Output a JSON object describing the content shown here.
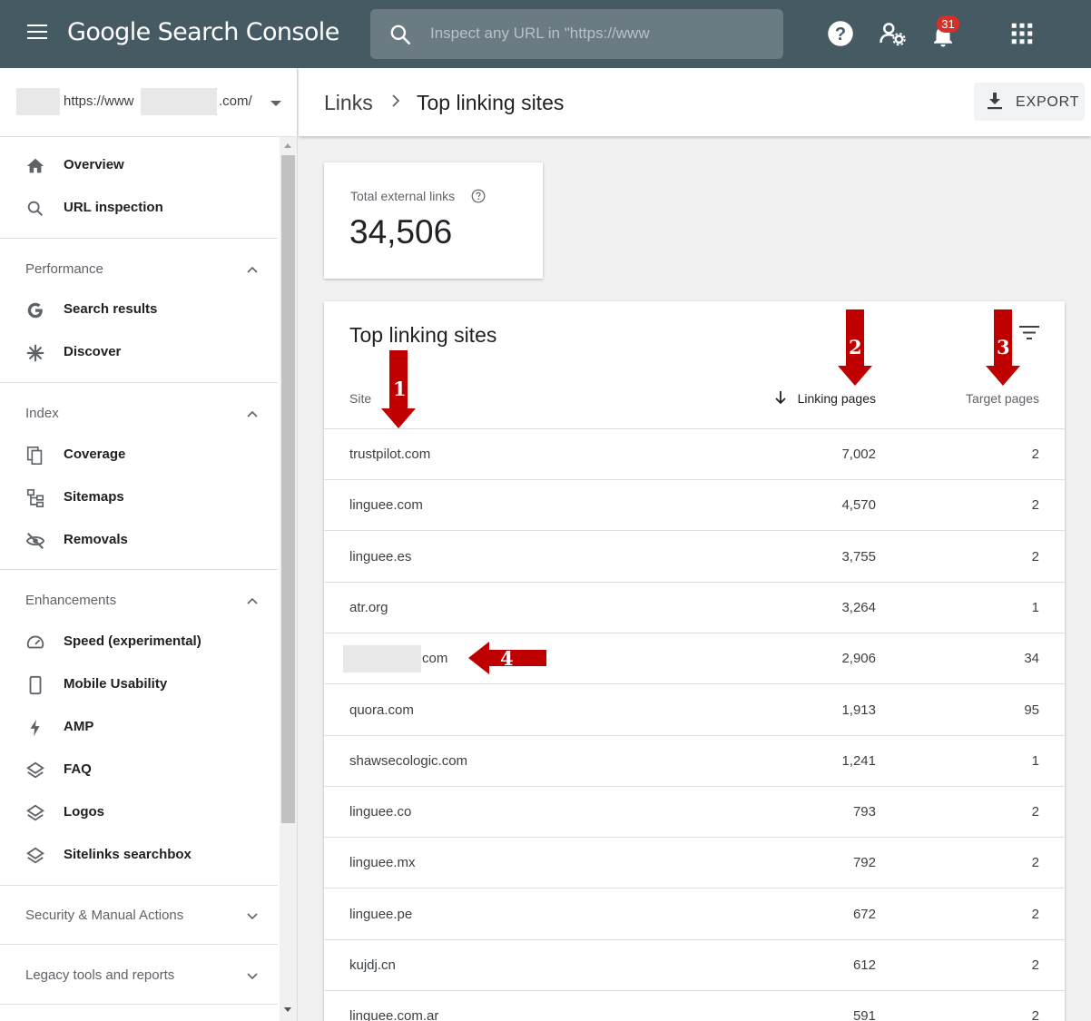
{
  "app": {
    "title": "Google Search Console",
    "search_placeholder": "Inspect any URL in \"https://www",
    "notification_count": "31",
    "header_icons": [
      "help-icon",
      "account-settings-icon",
      "notifications-icon",
      "apps-grid-icon"
    ]
  },
  "property": {
    "url_prefix": "https://www",
    "url_suffix": ".com/"
  },
  "sidebar": {
    "top_items": [
      {
        "label": "Overview",
        "icon": "home-icon"
      },
      {
        "label": "URL inspection",
        "icon": "search-icon"
      }
    ],
    "sections": [
      {
        "title": "Performance",
        "expanded": true,
        "items": [
          {
            "label": "Search results",
            "icon": "google-g-icon"
          },
          {
            "label": "Discover",
            "icon": "asterisk-icon"
          }
        ]
      },
      {
        "title": "Index",
        "expanded": true,
        "items": [
          {
            "label": "Coverage",
            "icon": "coverage-icon"
          },
          {
            "label": "Sitemaps",
            "icon": "sitemap-icon"
          },
          {
            "label": "Removals",
            "icon": "eye-off-icon"
          }
        ]
      },
      {
        "title": "Enhancements",
        "expanded": true,
        "items": [
          {
            "label": "Speed (experimental)",
            "icon": "speedometer-icon"
          },
          {
            "label": "Mobile Usability",
            "icon": "phone-icon"
          },
          {
            "label": "AMP",
            "icon": "bolt-icon"
          },
          {
            "label": "FAQ",
            "icon": "layers-icon"
          },
          {
            "label": "Logos",
            "icon": "layers-icon"
          },
          {
            "label": "Sitelinks searchbox",
            "icon": "layers-icon"
          }
        ]
      },
      {
        "title": "Security & Manual Actions",
        "expanded": false,
        "items": []
      },
      {
        "title": "Legacy tools and reports",
        "expanded": false,
        "items": []
      }
    ]
  },
  "breadcrumb": {
    "parent": "Links",
    "current": "Top linking sites"
  },
  "export_label": "EXPORT",
  "summary": {
    "label": "Total external links",
    "value": "34,506"
  },
  "table": {
    "title": "Top linking sites",
    "columns": {
      "site": "Site",
      "linking": "Linking pages",
      "target": "Target pages"
    },
    "sorted_by": "Linking pages",
    "rows": [
      {
        "site": "trustpilot.com",
        "linking": "7,002",
        "target": "2"
      },
      {
        "site": "linguee.com",
        "linking": "4,570",
        "target": "2"
      },
      {
        "site": "linguee.es",
        "linking": "3,755",
        "target": "2"
      },
      {
        "site": "atr.org",
        "linking": "3,264",
        "target": "1"
      },
      {
        "site": "com",
        "linking": "2,906",
        "target": "34",
        "redacted": true
      },
      {
        "site": "quora.com",
        "linking": "1,913",
        "target": "95"
      },
      {
        "site": "shawsecologic.com",
        "linking": "1,241",
        "target": "1"
      },
      {
        "site": "linguee.co",
        "linking": "793",
        "target": "2"
      },
      {
        "site": "linguee.mx",
        "linking": "792",
        "target": "2"
      },
      {
        "site": "linguee.pe",
        "linking": "672",
        "target": "2"
      },
      {
        "site": "kujdj.cn",
        "linking": "612",
        "target": "2"
      },
      {
        "site": "linguee.com.ar",
        "linking": "591",
        "target": "2"
      }
    ]
  },
  "annotations": {
    "labels": [
      "1",
      "2",
      "3",
      "4"
    ],
    "color": "#c00000"
  }
}
